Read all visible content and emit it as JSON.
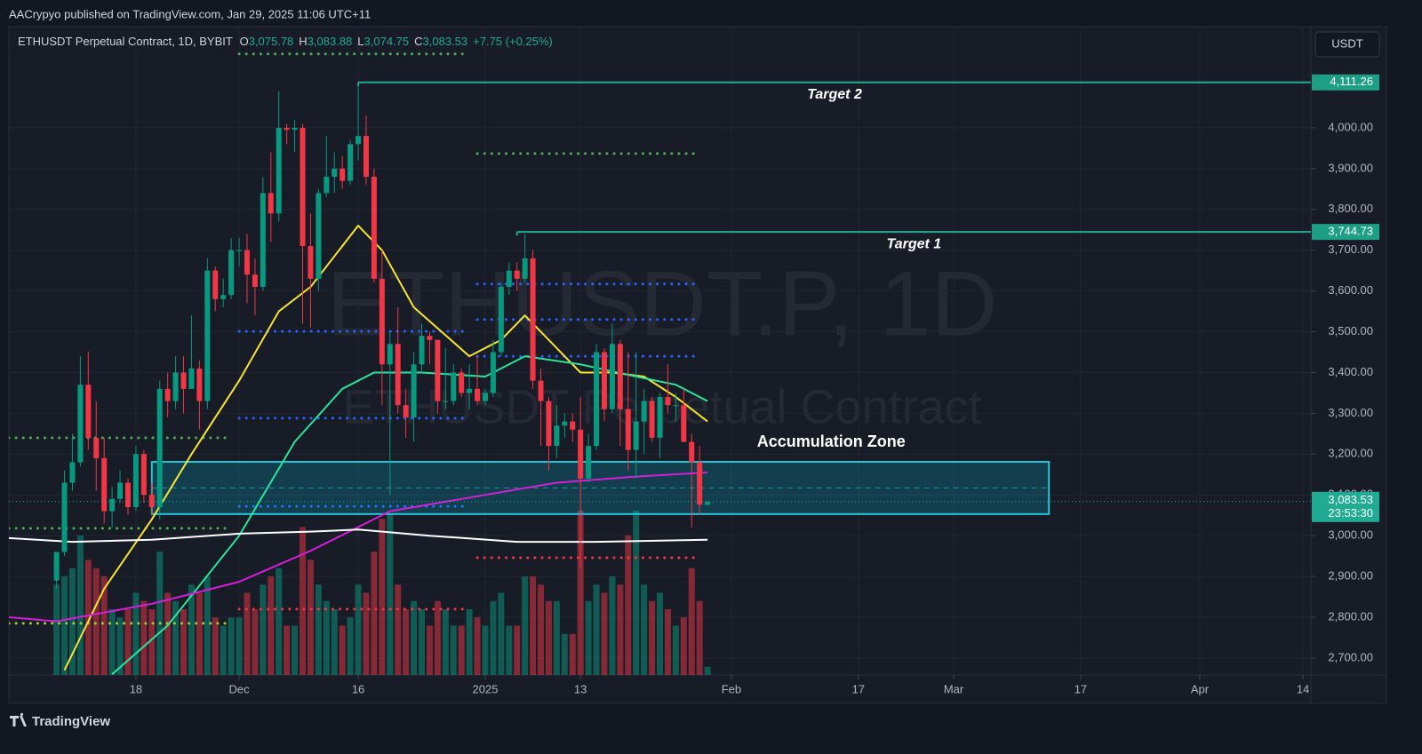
{
  "header": {
    "published": "AACrypyo published on TradingView.com, Jan 29, 2025 11:06 UTC+11",
    "symbol": "ETHUSDT Perpetual Contract, 1D, BYBIT",
    "open_label": "O",
    "open": "3,075.78",
    "high_label": "H",
    "high": "3,083.88",
    "low_label": "L",
    "low": "3,074.75",
    "close_label": "C",
    "close": "3,083.53",
    "change": "+7.75 (+0.25%)",
    "currency": "USDT"
  },
  "watermark": {
    "title": "ETHUSDT.P, 1D",
    "subtitle": "ETHUSDT Perpetual Contract"
  },
  "footer": {
    "brand": "TradingView"
  },
  "chart_data": {
    "type": "candlestick",
    "up_color": "#089981",
    "down_color": "#f23645",
    "grid": true,
    "xlim": [
      "Nov 2",
      "Apr 15"
    ],
    "ylim": [
      2658.5,
      4248
    ],
    "yticks": [
      {
        "value": 2700,
        "label": "2,700.00"
      },
      {
        "value": 2800,
        "label": "2,800.00"
      },
      {
        "value": 2900,
        "label": "2,900.00"
      },
      {
        "value": 3000,
        "label": "3,000.00"
      },
      {
        "value": 3100,
        "label": "3,100.00"
      },
      {
        "value": 3200,
        "label": "3,200.00"
      },
      {
        "value": 3300,
        "label": "3,300.00"
      },
      {
        "value": 3400,
        "label": "3,400.00"
      },
      {
        "value": 3500,
        "label": "3,500.00"
      },
      {
        "value": 3600,
        "label": "3,600.00"
      },
      {
        "value": 3700,
        "label": "3,700.00"
      },
      {
        "value": 3800,
        "label": "3,800.00"
      },
      {
        "value": 3900,
        "label": "3,900.00"
      },
      {
        "value": 4000,
        "label": "4,000.00"
      }
    ],
    "xticks": [
      {
        "value": "Nov 18",
        "label": "18"
      },
      {
        "value": "Dec 1",
        "label": "Dec"
      },
      {
        "value": "Dec 16",
        "label": "16"
      },
      {
        "value": "Jan 1",
        "label": "2025"
      },
      {
        "value": "Jan 13",
        "label": "13"
      },
      {
        "value": "Feb 1",
        "label": "Feb"
      },
      {
        "value": "Feb 17",
        "label": "17"
      },
      {
        "value": "Mar 1",
        "label": "Mar"
      },
      {
        "value": "Mar 17",
        "label": "17"
      },
      {
        "value": "Apr 1",
        "label": "Apr"
      },
      {
        "value": "Apr 14",
        "label": "14"
      }
    ],
    "x": [
      "Nov 8",
      "Nov 9",
      "Nov 10",
      "Nov 11",
      "Nov 12",
      "Nov 13",
      "Nov 14",
      "Nov 15",
      "Nov 16",
      "Nov 17",
      "Nov 18",
      "Nov 19",
      "Nov 20",
      "Nov 21",
      "Nov 22",
      "Nov 23",
      "Nov 24",
      "Nov 25",
      "Nov 26",
      "Nov 27",
      "Nov 28",
      "Nov 29",
      "Nov 30",
      "Dec 1",
      "Dec 2",
      "Dec 3",
      "Dec 4",
      "Dec 5",
      "Dec 6",
      "Dec 7",
      "Dec 8",
      "Dec 9",
      "Dec 10",
      "Dec 11",
      "Dec 12",
      "Dec 13",
      "Dec 14",
      "Dec 15",
      "Dec 16",
      "Dec 17",
      "Dec 18",
      "Dec 19",
      "Dec 20",
      "Dec 21",
      "Dec 22",
      "Dec 23",
      "Dec 24",
      "Dec 25",
      "Dec 26",
      "Dec 27",
      "Dec 28",
      "Dec 29",
      "Dec 30",
      "Dec 31",
      "Jan 1",
      "Jan 2",
      "Jan 3",
      "Jan 4",
      "Jan 5",
      "Jan 6",
      "Jan 7",
      "Jan 8",
      "Jan 9",
      "Jan 10",
      "Jan 11",
      "Jan 12",
      "Jan 13",
      "Jan 14",
      "Jan 15",
      "Jan 16",
      "Jan 17",
      "Jan 18",
      "Jan 19",
      "Jan 20",
      "Jan 21",
      "Jan 22",
      "Jan 23",
      "Jan 24",
      "Jan 25",
      "Jan 26",
      "Jan 27",
      "Jan 28",
      "Jan 29"
    ],
    "ohlc": [
      [
        2890,
        2960,
        2870,
        2960
      ],
      [
        2960,
        3160,
        2950,
        3130
      ],
      [
        3130,
        3250,
        3110,
        3180
      ],
      [
        3180,
        3440,
        3170,
        3370
      ],
      [
        3370,
        3450,
        3210,
        3240
      ],
      [
        3240,
        3330,
        3110,
        3190
      ],
      [
        3190,
        3240,
        3030,
        3060
      ],
      [
        3060,
        3120,
        3020,
        3090
      ],
      [
        3090,
        3160,
        3080,
        3130
      ],
      [
        3130,
        3140,
        3050,
        3070
      ],
      [
        3070,
        3220,
        3060,
        3200
      ],
      [
        3200,
        3210,
        3080,
        3100
      ],
      [
        3100,
        3130,
        3050,
        3070
      ],
      [
        3070,
        3380,
        3040,
        3360
      ],
      [
        3360,
        3400,
        3290,
        3330
      ],
      [
        3330,
        3440,
        3310,
        3400
      ],
      [
        3400,
        3440,
        3300,
        3360
      ],
      [
        3360,
        3540,
        3360,
        3410
      ],
      [
        3410,
        3430,
        3260,
        3330
      ],
      [
        3330,
        3680,
        3310,
        3650
      ],
      [
        3650,
        3660,
        3550,
        3580
      ],
      [
        3580,
        3630,
        3560,
        3590
      ],
      [
        3590,
        3730,
        3580,
        3700
      ],
      [
        3700,
        3730,
        3660,
        3700
      ],
      [
        3700,
        3740,
        3570,
        3640
      ],
      [
        3640,
        3680,
        3540,
        3610
      ],
      [
        3610,
        3880,
        3600,
        3840
      ],
      [
        3840,
        3940,
        3720,
        3790
      ],
      [
        3790,
        4090,
        3770,
        4000
      ],
      [
        4000,
        4010,
        3960,
        3995
      ],
      [
        3995,
        4020,
        3940,
        4000
      ],
      [
        4000,
        4010,
        3520,
        3710
      ],
      [
        3710,
        3790,
        3510,
        3630
      ],
      [
        3630,
        3850,
        3600,
        3840
      ],
      [
        3840,
        3980,
        3830,
        3880
      ],
      [
        3880,
        3940,
        3840,
        3900
      ],
      [
        3900,
        3930,
        3850,
        3870
      ],
      [
        3870,
        3970,
        3860,
        3960
      ],
      [
        3960,
        4110,
        3920,
        3980
      ],
      [
        3980,
        4030,
        3860,
        3880
      ],
      [
        3880,
        3900,
        3620,
        3630
      ],
      [
        3630,
        3700,
        3320,
        3420
      ],
      [
        3420,
        3500,
        3100,
        3470
      ],
      [
        3470,
        3560,
        3300,
        3320
      ],
      [
        3320,
        3360,
        3240,
        3290
      ],
      [
        3290,
        3450,
        3230,
        3420
      ],
      [
        3420,
        3520,
        3400,
        3490
      ],
      [
        3490,
        3500,
        3420,
        3480
      ],
      [
        3480,
        3480,
        3300,
        3330
      ],
      [
        3330,
        3460,
        3310,
        3330
      ],
      [
        3330,
        3420,
        3320,
        3400
      ],
      [
        3400,
        3410,
        3340,
        3350
      ],
      [
        3350,
        3420,
        3310,
        3360
      ],
      [
        3360,
        3440,
        3320,
        3330
      ],
      [
        3330,
        3360,
        3320,
        3350
      ],
      [
        3350,
        3480,
        3340,
        3450
      ],
      [
        3450,
        3620,
        3440,
        3610
      ],
      [
        3610,
        3670,
        3590,
        3650
      ],
      [
        3650,
        3670,
        3600,
        3630
      ],
      [
        3630,
        3740,
        3620,
        3680
      ],
      [
        3680,
        3700,
        3360,
        3380
      ],
      [
        3380,
        3410,
        3220,
        3330
      ],
      [
        3330,
        3340,
        3160,
        3220
      ],
      [
        3220,
        3320,
        3190,
        3270
      ],
      [
        3270,
        3300,
        3240,
        3280
      ],
      [
        3280,
        3300,
        3230,
        3260
      ],
      [
        3260,
        3340,
        2920,
        3140
      ],
      [
        3140,
        3250,
        3130,
        3220
      ],
      [
        3220,
        3470,
        3210,
        3450
      ],
      [
        3450,
        3460,
        3280,
        3310
      ],
      [
        3310,
        3520,
        3300,
        3470
      ],
      [
        3470,
        3480,
        3220,
        3310
      ],
      [
        3310,
        3450,
        3160,
        3210
      ],
      [
        3210,
        3450,
        3140,
        3280
      ],
      [
        3280,
        3360,
        3200,
        3330
      ],
      [
        3330,
        3340,
        3230,
        3240
      ],
      [
        3240,
        3350,
        3190,
        3340
      ],
      [
        3340,
        3420,
        3300,
        3320
      ],
      [
        3320,
        3350,
        3280,
        3320
      ],
      [
        3320,
        3360,
        3230,
        3230
      ],
      [
        3230,
        3250,
        3020,
        3180
      ],
      [
        3180,
        3220,
        3050,
        3075.78
      ],
      [
        3075.78,
        3083.88,
        3074.75,
        3083.53
      ]
    ],
    "volume": [
      55,
      60,
      65,
      85,
      70,
      65,
      60,
      40,
      35,
      40,
      50,
      45,
      40,
      75,
      50,
      45,
      40,
      55,
      50,
      60,
      35,
      30,
      35,
      35,
      50,
      40,
      55,
      60,
      65,
      30,
      30,
      90,
      70,
      55,
      45,
      40,
      30,
      35,
      55,
      50,
      75,
      95,
      98,
      55,
      40,
      45,
      40,
      30,
      45,
      40,
      30,
      30,
      40,
      35,
      30,
      45,
      50,
      30,
      30,
      60,
      60,
      55,
      45,
      45,
      25,
      25,
      100,
      45,
      55,
      50,
      60,
      55,
      85,
      100,
      55,
      45,
      50,
      40,
      30,
      35,
      65,
      45,
      5
    ],
    "lines": [
      {
        "color": "#f5e435",
        "x": [
          "Nov 9",
          "Nov 14",
          "Nov 20",
          "Nov 25",
          "Dec 1",
          "Dec 6",
          "Dec 10",
          "Dec 16",
          "Dec 19",
          "Dec 23",
          "Dec 30",
          "Jan 3",
          "Jan 6",
          "Jan 10",
          "Jan 13",
          "Jan 17",
          "Jan 21",
          "Jan 25",
          "Jan 29"
        ],
        "values": [
          2670,
          2870,
          3040,
          3200,
          3380,
          3550,
          3610,
          3760,
          3700,
          3560,
          3440,
          3480,
          3540,
          3460,
          3400,
          3400,
          3390,
          3340,
          3280
        ]
      },
      {
        "color": "#2fe39a",
        "x": [
          "Nov 15",
          "Nov 22",
          "Dec 1",
          "Dec 8",
          "Dec 14",
          "Dec 18",
          "Dec 24",
          "Jan 1",
          "Jan 6",
          "Jan 13",
          "Jan 20",
          "Jan 25",
          "Jan 29"
        ],
        "values": [
          2660,
          2780,
          3000,
          3230,
          3360,
          3400,
          3400,
          3390,
          3440,
          3420,
          3390,
          3370,
          3330
        ]
      },
      {
        "color": "#d21fd8",
        "x": [
          "Nov 2",
          "Nov 8",
          "Nov 20",
          "Dec 1",
          "Dec 10",
          "Dec 20",
          "Jan 1",
          "Jan 10",
          "Jan 20",
          "Jan 29"
        ],
        "values": [
          2800,
          2790,
          2833,
          2887,
          2963,
          3060,
          3100,
          3130,
          3145,
          3155
        ]
      },
      {
        "color": "#ffffff",
        "x": [
          "Nov 2",
          "Nov 10",
          "Nov 20",
          "Dec 1",
          "Dec 10",
          "Dec 16",
          "Dec 25",
          "Jan 5",
          "Jan 15",
          "Jan 29"
        ],
        "values": [
          2994,
          2985,
          2990,
          3005,
          3010,
          3015,
          3000,
          2985,
          2985,
          2990
        ]
      }
    ],
    "levels": [
      {
        "value": 4181,
        "from": "Dec 1",
        "to": "Dec 30",
        "color": "#4caf50"
      },
      {
        "value": 3937,
        "from": "Dec 31",
        "to": "Jan 28",
        "color": "#4caf50"
      },
      {
        "value": 3240,
        "from": "Nov 2",
        "to": "Nov 30",
        "color": "#4caf50"
      },
      {
        "value": 3018,
        "from": "Nov 2",
        "to": "Nov 30",
        "color": "#4caf50"
      },
      {
        "value": 2946,
        "from": "Dec 31",
        "to": "Jan 28",
        "color": "#f23645"
      },
      {
        "value": 2820,
        "from": "Dec 1",
        "to": "Dec 30",
        "color": "#f23645"
      },
      {
        "value": 2785,
        "from": "Nov 2",
        "to": "Nov 30",
        "color": "#9ccc3c"
      },
      {
        "value": 3617,
        "from": "Dec 31",
        "to": "Jan 28",
        "color": "#2962ff"
      },
      {
        "value": 3530,
        "from": "Dec 31",
        "to": "Jan 28",
        "color": "#2962ff"
      },
      {
        "value": 3440,
        "from": "Dec 31",
        "to": "Jan 28",
        "color": "#2962ff"
      },
      {
        "value": 3501,
        "from": "Dec 1",
        "to": "Dec 30",
        "color": "#2962ff"
      },
      {
        "value": 3288,
        "from": "Dec 1",
        "to": "Dec 30",
        "color": "#2962ff"
      },
      {
        "value": 3072,
        "from": "Dec 1",
        "to": "Dec 30",
        "color": "#2962ff"
      }
    ],
    "targets": [
      {
        "label": "Target 2",
        "value": 4111.26,
        "price_label": "4,111.26",
        "from": "Dec 16"
      },
      {
        "label": "Target 1",
        "value": 3744.73,
        "price_label": "3,744.73",
        "from": "Jan 5"
      }
    ],
    "zone": {
      "label": "Accumulation Zone",
      "from": "Nov 20",
      "to": "Mar 13",
      "top": 3181,
      "bottom": 3053
    },
    "last_price": {
      "value": 3083.53,
      "label": "3,083.53",
      "countdown": "23:53:30"
    }
  }
}
